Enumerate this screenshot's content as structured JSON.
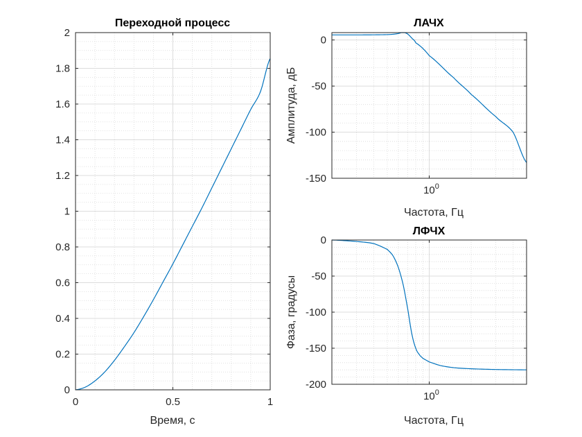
{
  "chart_data": [
    {
      "id": "step",
      "type": "line",
      "title": "Переходной процесс",
      "xlabel": "Время, с",
      "ylabel": "",
      "xlim": [
        0,
        1
      ],
      "ylim": [
        0,
        2
      ],
      "xticks": [
        0,
        0.5,
        1
      ],
      "xtick_labels": [
        "0",
        "0.5",
        "1"
      ],
      "yticks": [
        0,
        0.2,
        0.4,
        0.6,
        0.8,
        1,
        1.2,
        1.4,
        1.6,
        1.8,
        2
      ],
      "ytick_labels": [
        "0",
        "0.2",
        "0.4",
        "0.6",
        "0.8",
        "1",
        "1.2",
        "1.4",
        "1.6",
        "1.8",
        "2"
      ],
      "grid": true,
      "minor_grid": true,
      "x": [
        0,
        0.05,
        0.1,
        0.15,
        0.2,
        0.25,
        0.3,
        0.35,
        0.4,
        0.45,
        0.5,
        0.55,
        0.6,
        0.65,
        0.7,
        0.75,
        0.8,
        0.85,
        0.9,
        0.95,
        1.0
      ],
      "y": [
        0,
        0.015,
        0.05,
        0.1,
        0.165,
        0.24,
        0.32,
        0.41,
        0.505,
        0.605,
        0.705,
        0.81,
        0.915,
        1.02,
        1.13,
        1.24,
        1.35,
        1.46,
        1.57,
        1.67,
        1.855
      ]
    },
    {
      "id": "mag",
      "type": "line",
      "title": "ЛАЧХ",
      "xlabel": "Частота, Гц",
      "ylabel": "Амплитуда, дБ",
      "xscale": "log",
      "xlim": [
        0.2,
        5
      ],
      "ylim": [
        -150,
        8
      ],
      "xticks": [
        1
      ],
      "xtick_labels": [
        "10"
      ],
      "xtick_exponents": [
        "0"
      ],
      "yticks": [
        0,
        -50,
        -100,
        -150
      ],
      "ytick_labels": [
        "0",
        "-50",
        "-100",
        "-150"
      ],
      "grid": true,
      "minor_grid": true,
      "x": [
        0.2,
        0.3,
        0.4,
        0.5,
        0.55,
        0.6,
        0.65,
        0.7,
        0.75,
        0.8,
        1.0,
        1.5,
        2,
        3,
        4,
        5
      ],
      "y": [
        5.5,
        5.5,
        5.6,
        5.8,
        6.2,
        7,
        8.3,
        6.5,
        2,
        -3,
        -17,
        -41,
        -59,
        -83,
        -100,
        -133
      ]
    },
    {
      "id": "phase",
      "type": "line",
      "title": "ЛФЧХ",
      "xlabel": "Частота, Гц",
      "ylabel": "Фаза, градусы",
      "xscale": "log",
      "xlim": [
        0.2,
        5
      ],
      "ylim": [
        -200,
        0
      ],
      "xticks": [
        1
      ],
      "xtick_labels": [
        "10"
      ],
      "xtick_exponents": [
        "0"
      ],
      "yticks": [
        0,
        -50,
        -100,
        -150,
        -200
      ],
      "ytick_labels": [
        "0",
        "-50",
        "-100",
        "-150",
        "-200"
      ],
      "grid": true,
      "minor_grid": true,
      "x": [
        0.2,
        0.3,
        0.4,
        0.5,
        0.55,
        0.6,
        0.65,
        0.7,
        0.75,
        0.8,
        0.85,
        0.9,
        1.0,
        1.2,
        1.5,
        2,
        3,
        5
      ],
      "y": [
        0,
        -2,
        -5,
        -13,
        -22,
        -38,
        -62,
        -95,
        -130,
        -150,
        -159,
        -164,
        -169,
        -174,
        -177,
        -178.5,
        -179.5,
        -180
      ]
    }
  ]
}
